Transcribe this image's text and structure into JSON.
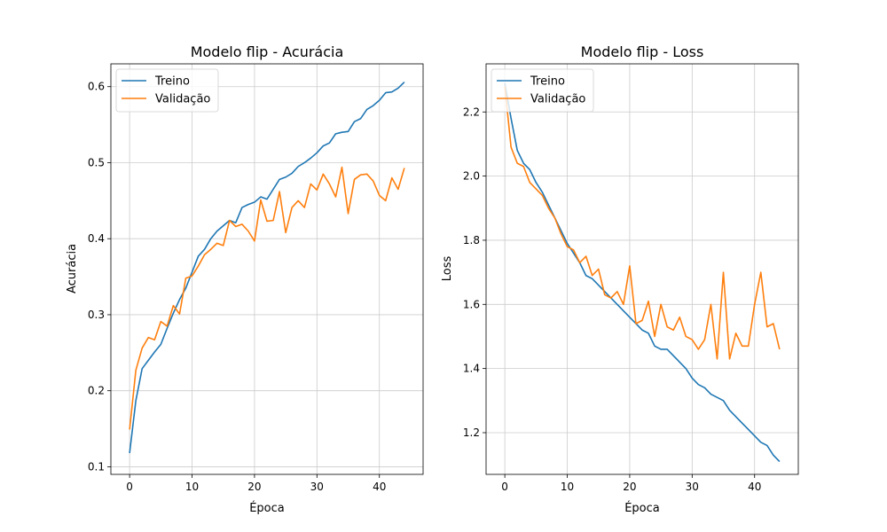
{
  "chart_data": [
    {
      "type": "line",
      "title": "Modelo flip - Acurácia",
      "xlabel": "Época",
      "ylabel": "Acurácia",
      "xlim": [
        -3,
        47
      ],
      "ylim": [
        0.09,
        0.63
      ],
      "xticks": [
        0,
        10,
        20,
        30,
        40
      ],
      "yticks": [
        0.1,
        0.2,
        0.3,
        0.4,
        0.5,
        0.6
      ],
      "grid": true,
      "legend": "top-left",
      "x": [
        0,
        1,
        2,
        3,
        4,
        5,
        6,
        7,
        8,
        9,
        10,
        11,
        12,
        13,
        14,
        15,
        16,
        17,
        18,
        19,
        20,
        21,
        22,
        23,
        24,
        25,
        26,
        27,
        28,
        29,
        30,
        31,
        32,
        33,
        34,
        35,
        36,
        37,
        38,
        39,
        40,
        41,
        42,
        43,
        44
      ],
      "series": [
        {
          "name": "Treino",
          "color": "#1f77b4",
          "values": [
            0.118,
            0.187,
            0.229,
            0.24,
            0.251,
            0.261,
            0.282,
            0.302,
            0.32,
            0.335,
            0.356,
            0.377,
            0.386,
            0.4,
            0.41,
            0.417,
            0.424,
            0.421,
            0.441,
            0.445,
            0.448,
            0.455,
            0.452,
            0.465,
            0.478,
            0.481,
            0.486,
            0.495,
            0.5,
            0.506,
            0.513,
            0.522,
            0.526,
            0.538,
            0.54,
            0.541,
            0.554,
            0.558,
            0.57,
            0.575,
            0.582,
            0.592,
            0.593,
            0.598,
            0.606
          ]
        },
        {
          "name": "Validação",
          "color": "#ff7f0e",
          "values": [
            0.149,
            0.227,
            0.256,
            0.27,
            0.267,
            0.291,
            0.285,
            0.312,
            0.301,
            0.348,
            0.351,
            0.364,
            0.379,
            0.386,
            0.394,
            0.391,
            0.424,
            0.416,
            0.419,
            0.41,
            0.397,
            0.451,
            0.423,
            0.424,
            0.462,
            0.408,
            0.441,
            0.45,
            0.441,
            0.472,
            0.464,
            0.485,
            0.472,
            0.455,
            0.494,
            0.433,
            0.478,
            0.484,
            0.485,
            0.476,
            0.457,
            0.45,
            0.48,
            0.465,
            0.493
          ]
        }
      ]
    },
    {
      "type": "line",
      "title": "Modelo flip - Loss",
      "xlabel": "Época",
      "ylabel": "Loss",
      "xlim": [
        -3,
        47
      ],
      "ylim": [
        1.07,
        2.35
      ],
      "xticks": [
        0,
        10,
        20,
        30,
        40
      ],
      "yticks": [
        1.2,
        1.4,
        1.6,
        1.8,
        2.0,
        2.2
      ],
      "grid": true,
      "legend": "top-left",
      "x": [
        0,
        1,
        2,
        3,
        4,
        5,
        6,
        7,
        8,
        9,
        10,
        11,
        12,
        13,
        14,
        15,
        16,
        17,
        18,
        19,
        20,
        21,
        22,
        23,
        24,
        25,
        26,
        27,
        28,
        29,
        30,
        31,
        32,
        33,
        34,
        35,
        36,
        37,
        38,
        39,
        40,
        41,
        42,
        43,
        44
      ],
      "series": [
        {
          "name": "Treino",
          "color": "#1f77b4",
          "values": [
            2.29,
            2.18,
            2.08,
            2.04,
            2.02,
            1.98,
            1.95,
            1.91,
            1.87,
            1.83,
            1.79,
            1.76,
            1.73,
            1.69,
            1.68,
            1.66,
            1.64,
            1.62,
            1.6,
            1.58,
            1.56,
            1.54,
            1.52,
            1.51,
            1.47,
            1.46,
            1.46,
            1.44,
            1.42,
            1.4,
            1.37,
            1.35,
            1.34,
            1.32,
            1.31,
            1.3,
            1.27,
            1.25,
            1.23,
            1.21,
            1.19,
            1.17,
            1.16,
            1.13,
            1.11
          ]
        },
        {
          "name": "Validação",
          "color": "#ff7f0e",
          "values": [
            2.28,
            2.09,
            2.04,
            2.03,
            1.98,
            1.96,
            1.94,
            1.9,
            1.87,
            1.82,
            1.78,
            1.77,
            1.73,
            1.75,
            1.69,
            1.71,
            1.63,
            1.62,
            1.64,
            1.6,
            1.72,
            1.54,
            1.55,
            1.61,
            1.5,
            1.6,
            1.53,
            1.52,
            1.56,
            1.5,
            1.49,
            1.46,
            1.49,
            1.6,
            1.43,
            1.7,
            1.43,
            1.51,
            1.47,
            1.47,
            1.6,
            1.7,
            1.53,
            1.54,
            1.46
          ]
        }
      ]
    }
  ]
}
